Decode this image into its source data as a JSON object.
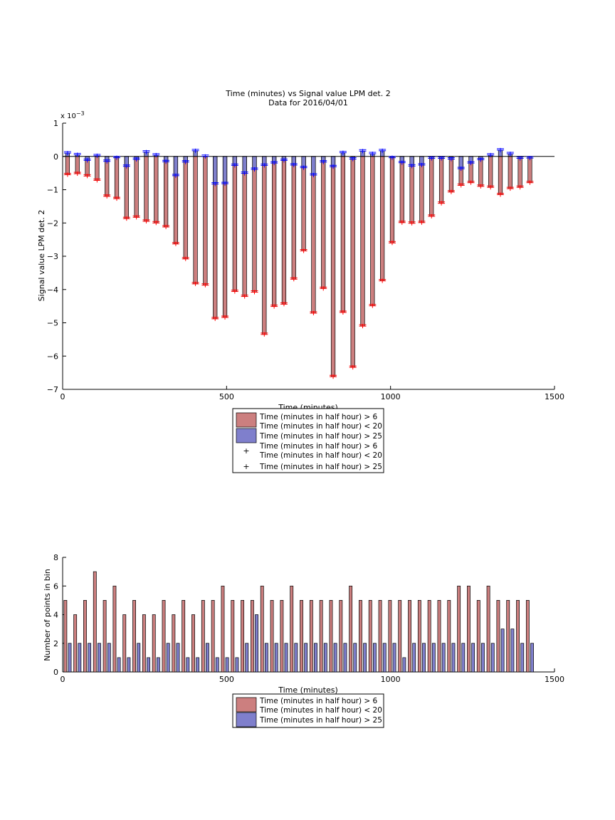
{
  "colors": {
    "red_bar": "#cc7f7f",
    "blue_bar": "#7f7fcc",
    "red_marker": "#ff0000",
    "blue_marker": "#0000ff"
  },
  "chart_data": [
    {
      "type": "bar",
      "title_line1": "Time (minutes) vs Signal value LPM det. 2",
      "title_line2": "Data for 2016/04/01",
      "xlabel": "Time (minutes)",
      "ylabel": "Signal value LPM det. 2",
      "y_scale_label": "x 10",
      "y_scale_exponent": "−3",
      "xlim": [
        0,
        1500
      ],
      "ylim": [
        -7,
        1
      ],
      "y_multiplier": 0.001,
      "xticks": [
        0,
        500,
        1000,
        1500
      ],
      "yticks": [
        1,
        0,
        -1,
        -2,
        -3,
        -4,
        -5,
        -6,
        -7
      ],
      "x": [
        15,
        45,
        75,
        105,
        135,
        165,
        195,
        225,
        255,
        285,
        315,
        345,
        375,
        405,
        435,
        465,
        495,
        525,
        555,
        585,
        615,
        645,
        675,
        705,
        735,
        765,
        795,
        825,
        855,
        885,
        915,
        945,
        975,
        1005,
        1035,
        1065,
        1095,
        1125,
        1155,
        1185,
        1215,
        1245,
        1275,
        1305,
        1335,
        1365,
        1395,
        1425
      ],
      "series": [
        {
          "name": "Time (minutes in half hour) > 6\nTime (minutes in half hour) < 20",
          "values": [
            -0.55,
            -0.52,
            -0.59,
            -0.72,
            -1.2,
            -1.27,
            -1.87,
            -1.83,
            -1.95,
            -2.0,
            -2.12,
            -2.63,
            -3.08,
            -3.83,
            -3.87,
            -4.88,
            -4.84,
            -4.06,
            -4.21,
            -4.08,
            -5.35,
            -4.51,
            -4.44,
            -3.69,
            -2.84,
            -4.71,
            -3.97,
            -6.62,
            -4.69,
            -6.34,
            -5.1,
            -4.49,
            -3.74,
            -2.6,
            -1.99,
            -2.01,
            -1.99,
            -1.8,
            -1.41,
            -1.07,
            -0.87,
            -0.79,
            -0.9,
            -0.93,
            -1.15,
            -0.97,
            -0.93,
            -0.79
          ]
        },
        {
          "name": "Time (minutes in half hour) > 25",
          "values": [
            0.1,
            0.05,
            -0.12,
            0.02,
            -0.15,
            -0.04,
            -0.3,
            -0.09,
            0.13,
            0.04,
            -0.16,
            -0.58,
            -0.17,
            0.17,
            0.0,
            -0.83,
            -0.82,
            -0.27,
            -0.51,
            -0.39,
            -0.27,
            -0.2,
            -0.12,
            -0.26,
            -0.34,
            -0.56,
            -0.17,
            -0.31,
            0.11,
            -0.08,
            0.16,
            0.08,
            0.17,
            -0.04,
            -0.19,
            -0.29,
            -0.26,
            -0.06,
            -0.06,
            -0.08,
            -0.37,
            -0.2,
            -0.1,
            0.04,
            0.19,
            0.08,
            -0.06,
            -0.05
          ]
        }
      ],
      "legend": {
        "placement": "below",
        "entries": [
          {
            "line1": "Time (minutes in half hour) > 6",
            "line2": "Time (minutes in half hour) < 20"
          },
          {
            "line1": "Time (minutes in half hour) > 25"
          },
          {
            "line1": "Time (minutes in half hour) > 6",
            "line2": "Time (minutes in half hour) < 20"
          },
          {
            "line1": "Time (minutes in half hour) > 25"
          }
        ]
      }
    },
    {
      "type": "bar",
      "xlabel": "Time (minutes)",
      "ylabel": "Number of points in bin",
      "xlim": [
        0,
        1500
      ],
      "ylim": [
        0,
        8
      ],
      "xticks": [
        0,
        500,
        1000,
        1500
      ],
      "yticks": [
        0,
        2,
        4,
        6,
        8
      ],
      "x": [
        15,
        45,
        75,
        105,
        135,
        165,
        195,
        225,
        255,
        285,
        315,
        345,
        375,
        405,
        435,
        465,
        495,
        525,
        555,
        585,
        615,
        645,
        675,
        705,
        735,
        765,
        795,
        825,
        855,
        885,
        915,
        945,
        975,
        1005,
        1035,
        1065,
        1095,
        1125,
        1155,
        1185,
        1215,
        1245,
        1275,
        1305,
        1335,
        1365,
        1395,
        1425
      ],
      "series": [
        {
          "name": "Time (minutes in half hour) > 6\nTime (minutes in half hour) < 20",
          "values": [
            5,
            4,
            5,
            7,
            5,
            6,
            4,
            5,
            4,
            4,
            5,
            4,
            5,
            4,
            5,
            5,
            6,
            5,
            5,
            5,
            6,
            5,
            5,
            6,
            5,
            5,
            5,
            5,
            5,
            6,
            5,
            5,
            5,
            5,
            5,
            5,
            5,
            5,
            5,
            5,
            6,
            6,
            5,
            6,
            5,
            5,
            5,
            5
          ]
        },
        {
          "name": "Time (minutes in half hour) > 25",
          "values": [
            2,
            2,
            2,
            2,
            2,
            1,
            1,
            2,
            1,
            1,
            2,
            2,
            1,
            1,
            2,
            1,
            1,
            1,
            2,
            4,
            2,
            2,
            2,
            2,
            2,
            2,
            2,
            2,
            2,
            2,
            2,
            2,
            2,
            2,
            1,
            2,
            2,
            2,
            2,
            2,
            2,
            2,
            2,
            2,
            3,
            3,
            2,
            2
          ]
        }
      ],
      "legend": {
        "placement": "below",
        "entries": [
          {
            "line1": "Time (minutes in half hour) > 6",
            "line2": "Time (minutes in half hour) < 20"
          },
          {
            "line1": "Time (minutes in half hour) > 25"
          }
        ]
      }
    }
  ]
}
